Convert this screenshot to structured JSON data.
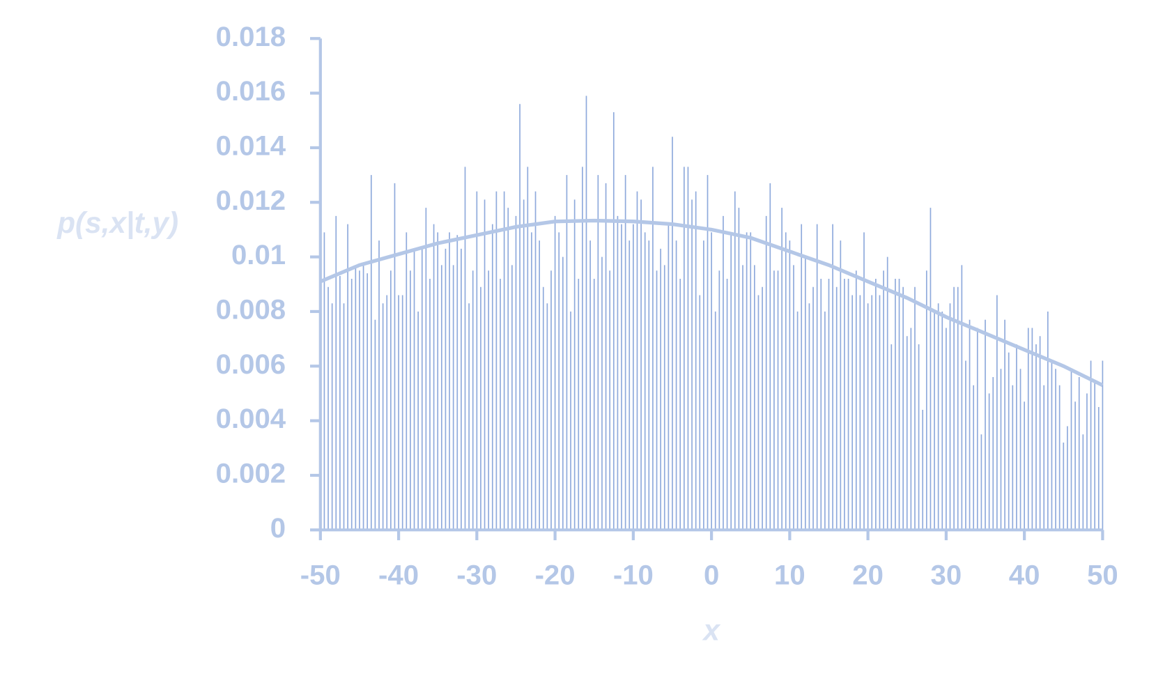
{
  "chart_data": {
    "type": "spike",
    "y_label": "p(s,x|t,y)",
    "x_label": "x",
    "xlim": [
      -50,
      50
    ],
    "ylim": [
      0,
      0.018
    ],
    "xticks": [
      -50,
      -40,
      -30,
      -20,
      -10,
      0,
      10,
      20,
      30,
      40,
      50
    ],
    "yticks": [
      0,
      0.002,
      0.004,
      0.006,
      0.008,
      0.01,
      0.012,
      0.014,
      0.016,
      0.018
    ],
    "axis_color": "#b4c7e7",
    "x": [
      -50,
      -49.5,
      -49,
      -48.5,
      -48,
      -47.5,
      -47,
      -46.5,
      -46,
      -45.5,
      -45,
      -44.5,
      -44,
      -43.5,
      -43,
      -42.5,
      -42,
      -41.5,
      -41,
      -40.5,
      -40,
      -39.5,
      -39,
      -38.5,
      -38,
      -37.5,
      -37,
      -36.5,
      -36,
      -35.5,
      -35,
      -34.5,
      -34,
      -33.5,
      -33,
      -32.5,
      -32,
      -31.5,
      -31,
      -30.5,
      -30,
      -29.5,
      -29,
      -28.5,
      -28,
      -27.5,
      -27,
      -26.5,
      -26,
      -25.5,
      -25,
      -24.5,
      -24,
      -23.5,
      -23,
      -22.5,
      -22,
      -21.5,
      -21,
      -20.5,
      -20,
      -19.5,
      -19,
      -18.5,
      -18,
      -17.5,
      -17,
      -16.5,
      -16,
      -15.5,
      -15,
      -14.5,
      -14,
      -13.5,
      -13,
      -12.5,
      -12,
      -11.5,
      -11,
      -10.5,
      -10,
      -9.5,
      -9,
      -8.5,
      -8,
      -7.5,
      -7,
      -6.5,
      -6,
      -5.5,
      -5,
      -4.5,
      -4,
      -3.5,
      -3,
      -2.5,
      -2,
      -1.5,
      -1,
      -0.5,
      0,
      0.5,
      1,
      1.5,
      2,
      2.5,
      3,
      3.5,
      4,
      4.5,
      5,
      5.5,
      6,
      6.5,
      7,
      7.5,
      8,
      8.5,
      9,
      9.5,
      10,
      10.5,
      11,
      11.5,
      12,
      12.5,
      13,
      13.5,
      14,
      14.5,
      15,
      15.5,
      16,
      16.5,
      17,
      17.5,
      18,
      18.5,
      19,
      19.5,
      20,
      20.5,
      21,
      21.5,
      22,
      22.5,
      23,
      23.5,
      24,
      24.5,
      25,
      25.5,
      26,
      26.5,
      27,
      27.5,
      28,
      28.5,
      29,
      29.5,
      30,
      30.5,
      31,
      31.5,
      32,
      32.5,
      33,
      33.5,
      34,
      34.5,
      35,
      35.5,
      36,
      36.5,
      37,
      37.5,
      38,
      38.5,
      39,
      39.5,
      40,
      40.5,
      41,
      41.5,
      42,
      42.5,
      43,
      43.5,
      44,
      44.5,
      45,
      45.5,
      46,
      46.5,
      47,
      47.5,
      48,
      48.5,
      49,
      49.5,
      50
    ],
    "series": [
      {
        "color": "#8faadc",
        "values": [
          0.0111,
          0.0109,
          0.0089,
          0.0083,
          0.0115,
          0.0093,
          0.0083,
          0.0112,
          0.0092,
          0.0097,
          0.0095,
          0.0097,
          0.0094,
          0.013,
          0.0077,
          0.0106,
          0.0083,
          0.0086,
          0.0095,
          0.0127,
          0.0086,
          0.0086,
          0.0109,
          0.0095,
          0.0102,
          0.008,
          0.0104,
          0.0118,
          0.0092,
          0.0112,
          0.0109,
          0.0097,
          0.0103,
          0.0109,
          0.0097,
          0.0108,
          0.0103,
          0.0133,
          0.0083,
          0.0095,
          0.0124,
          0.0089,
          0.0121,
          0.0095,
          0.0112,
          0.0124,
          0.0092,
          0.0124,
          0.0118,
          0.0097,
          0.0115,
          0.0156,
          0.0121,
          0.0133,
          0.0109,
          0.0124,
          0.0106,
          0.0089,
          0.0083,
          0.0095,
          0.0115,
          0.0109,
          0.01,
          0.013,
          0.008,
          0.0121,
          0.0092,
          0.0133,
          0.0159,
          0.0106,
          0.0092,
          0.013,
          0.01,
          0.0127,
          0.0095,
          0.0153,
          0.0115,
          0.0112,
          0.013,
          0.0106,
          0.0112,
          0.0124,
          0.0121,
          0.0109,
          0.0106,
          0.0133,
          0.0095,
          0.0103,
          0.0097,
          0.0112,
          0.0144,
          0.0106,
          0.0092,
          0.0133,
          0.0133,
          0.0121,
          0.0124,
          0.0086,
          0.0106,
          0.013,
          0.0109,
          0.008,
          0.0095,
          0.0115,
          0.0092,
          0.0109,
          0.0124,
          0.0118,
          0.0097,
          0.0109,
          0.0109,
          0.0097,
          0.0086,
          0.0089,
          0.0115,
          0.0127,
          0.0095,
          0.0095,
          0.0118,
          0.0109,
          0.0106,
          0.0097,
          0.008,
          0.0112,
          0.01,
          0.0083,
          0.0089,
          0.0112,
          0.0092,
          0.008,
          0.0092,
          0.0112,
          0.0089,
          0.0106,
          0.0092,
          0.0092,
          0.0086,
          0.0095,
          0.0086,
          0.0109,
          0.0083,
          0.0086,
          0.0092,
          0.0086,
          0.0095,
          0.01,
          0.0068,
          0.0092,
          0.0092,
          0.0089,
          0.0071,
          0.0074,
          0.0089,
          0.0068,
          0.0044,
          0.0095,
          0.0118,
          0.008,
          0.0083,
          0.008,
          0.0074,
          0.0083,
          0.0089,
          0.0089,
          0.0097,
          0.0062,
          0.0077,
          0.0053,
          0.0074,
          0.0035,
          0.0077,
          0.005,
          0.0056,
          0.0086,
          0.0059,
          0.0077,
          0.0065,
          0.0053,
          0.0068,
          0.0059,
          0.0047,
          0.0074,
          0.0074,
          0.0068,
          0.0071,
          0.0053,
          0.008,
          0.0062,
          0.0059,
          0.0053,
          0.0032,
          0.0038,
          0.0059,
          0.0047,
          0.0056,
          0.0035,
          0.005,
          0.0062,
          0.0054,
          0.0045,
          0.0062
        ]
      },
      {
        "type": "line",
        "color": "#b4c7e7",
        "x": [
          -50,
          -45,
          -40,
          -35,
          -30,
          -25,
          -20,
          -15,
          -10,
          -5,
          0,
          5,
          10,
          15,
          20,
          25,
          30,
          35,
          40,
          45,
          50
        ],
        "values": [
          0.0091,
          0.0097,
          0.0101,
          0.0105,
          0.0108,
          0.0111,
          0.0113,
          0.01133,
          0.0113,
          0.0112,
          0.011,
          0.0107,
          0.0102,
          0.0097,
          0.0091,
          0.0085,
          0.0078,
          0.0072,
          0.0066,
          0.006,
          0.0053
        ]
      }
    ]
  }
}
